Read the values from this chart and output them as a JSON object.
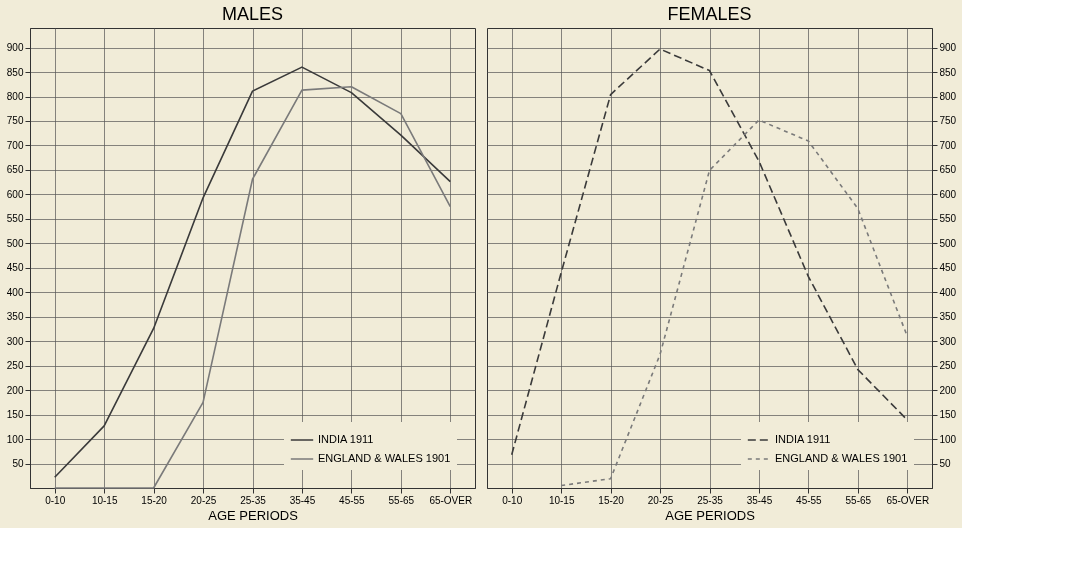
{
  "chart_data": [
    {
      "type": "line",
      "title": "MALES",
      "xlabel": "AGE PERIODS",
      "categories": [
        "0-10",
        "10-15",
        "15-20",
        "20-25",
        "25-35",
        "35-45",
        "45-55",
        "55-65",
        "65-OVER"
      ],
      "ylim": [
        0,
        940
      ],
      "yticks": [
        50,
        100,
        150,
        200,
        250,
        300,
        350,
        400,
        450,
        500,
        550,
        600,
        650,
        700,
        750,
        800,
        850,
        900
      ],
      "grid": true,
      "legend": "bottom right",
      "series": [
        {
          "name": "INDIA 1911",
          "color": "#3a3a3a",
          "line_style": "solid",
          "values": [
            22,
            127,
            326,
            593,
            811,
            860,
            808,
            721,
            626
          ]
        },
        {
          "name": "ENGLAND & WALES 1901",
          "color": "#7a7a7a",
          "line_style": "solid",
          "values": [
            0,
            0,
            0,
            175,
            631,
            813,
            820,
            765,
            575
          ]
        }
      ]
    },
    {
      "type": "line",
      "title": "FEMALES",
      "xlabel": "AGE PERIODS",
      "categories": [
        "0-10",
        "10-15",
        "15-20",
        "20-25",
        "25-35",
        "35-45",
        "45-55",
        "55-65",
        "65-OVER"
      ],
      "ylim": [
        0,
        940
      ],
      "yticks": [
        50,
        100,
        150,
        200,
        250,
        300,
        350,
        400,
        450,
        500,
        550,
        600,
        650,
        700,
        750,
        800,
        850,
        900
      ],
      "grid": true,
      "legend": "bottom right",
      "series": [
        {
          "name": "INDIA 1911",
          "color": "#3a3a3a",
          "line_style": "dashed",
          "values": [
            68,
            440,
            804,
            897,
            853,
            668,
            432,
            242,
            139
          ]
        },
        {
          "name": "ENGLAND & WALES 1901",
          "color": "#7a7a7a",
          "line_style": "dotted",
          "values": [
            null,
            5,
            19,
            273,
            649,
            752,
            709,
            571,
            310
          ]
        }
      ]
    }
  ]
}
